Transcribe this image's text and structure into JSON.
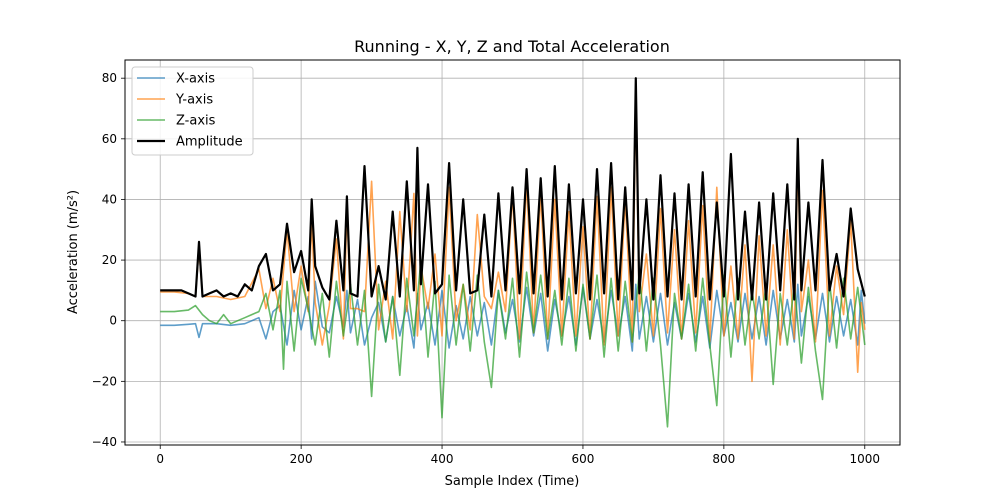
{
  "chart_data": {
    "type": "line",
    "title": "Running - X, Y, Z and Total Acceleration",
    "xlabel": "Sample Index (Time)",
    "ylabel": "Acceleration (m/s²)",
    "xlim": [
      -50,
      1050
    ],
    "ylim": [
      -41,
      86
    ],
    "xticks": [
      0,
      200,
      400,
      600,
      800,
      1000
    ],
    "yticks": [
      -40,
      -20,
      0,
      20,
      40,
      60,
      80
    ],
    "grid": true,
    "legend_position": "upper-left",
    "series": [
      {
        "name": "X-axis",
        "color": "#1f77b4",
        "x": [
          0,
          20,
          40,
          50,
          55,
          60,
          80,
          100,
          120,
          140,
          150,
          160,
          170,
          180,
          190,
          200,
          210,
          215,
          220,
          230,
          240,
          250,
          260,
          265,
          270,
          280,
          290,
          300,
          310,
          320,
          330,
          340,
          350,
          360,
          365,
          370,
          380,
          390,
          400,
          410,
          420,
          430,
          440,
          450,
          460,
          470,
          480,
          490,
          500,
          510,
          520,
          530,
          540,
          550,
          560,
          570,
          580,
          590,
          600,
          610,
          620,
          630,
          640,
          650,
          660,
          670,
          675,
          680,
          690,
          700,
          710,
          720,
          730,
          740,
          750,
          760,
          770,
          780,
          790,
          800,
          810,
          820,
          830,
          840,
          850,
          860,
          870,
          880,
          890,
          900,
          905,
          910,
          920,
          930,
          940,
          950,
          960,
          970,
          980,
          990,
          995,
          1000
        ],
        "y": [
          -1.5,
          -1.5,
          -1.2,
          -1,
          -5.5,
          -1,
          -1,
          -1.5,
          -1,
          1,
          -6,
          3,
          5,
          -8,
          10,
          -3,
          8,
          -6,
          13,
          -2,
          -4,
          8,
          -2,
          10,
          -4,
          7,
          -8,
          1,
          6,
          -7,
          8,
          -5,
          5,
          -9,
          9,
          -3,
          6,
          -8,
          10,
          -9,
          5,
          -6,
          8,
          -5,
          6,
          -8,
          10,
          -4,
          7,
          -7,
          11,
          -5,
          9,
          -10,
          7,
          -5,
          8,
          -8,
          11,
          -6,
          7,
          -7,
          10,
          -5,
          8,
          -10,
          12,
          -6,
          8,
          -7,
          9,
          -8,
          6,
          -6,
          9,
          -7,
          8,
          -9,
          10,
          -5,
          6,
          -7,
          9,
          -6,
          8,
          -8,
          10,
          -6,
          7,
          -7,
          12,
          -5,
          8,
          -6,
          9,
          -7,
          8,
          -5,
          7,
          -8,
          10,
          -1
        ]
      },
      {
        "name": "Y-axis",
        "color": "#ff7f0e",
        "x": [
          0,
          20,
          40,
          50,
          55,
          60,
          80,
          100,
          120,
          140,
          150,
          160,
          170,
          180,
          190,
          200,
          210,
          215,
          220,
          230,
          240,
          250,
          260,
          265,
          270,
          280,
          290,
          300,
          310,
          320,
          330,
          340,
          350,
          360,
          365,
          370,
          380,
          390,
          400,
          410,
          420,
          430,
          440,
          450,
          460,
          470,
          480,
          490,
          500,
          510,
          520,
          530,
          540,
          550,
          560,
          570,
          580,
          590,
          600,
          610,
          620,
          630,
          640,
          650,
          660,
          670,
          675,
          680,
          690,
          700,
          710,
          720,
          730,
          740,
          750,
          760,
          770,
          780,
          790,
          800,
          810,
          820,
          830,
          840,
          850,
          860,
          870,
          880,
          890,
          900,
          905,
          910,
          920,
          930,
          940,
          950,
          960,
          970,
          980,
          990,
          995,
          1000
        ],
        "y": [
          9.5,
          9.5,
          9,
          8,
          24,
          8,
          8,
          7,
          8,
          17,
          4,
          14,
          3,
          30,
          3,
          18,
          3,
          33,
          6,
          -8,
          5,
          27,
          -6,
          37,
          4,
          4,
          3,
          46,
          -3,
          13,
          -6,
          36,
          3,
          42,
          -5,
          18,
          4,
          22,
          -5,
          44,
          0,
          12,
          -3,
          35,
          8,
          4,
          16,
          3,
          42,
          -6,
          46,
          -4,
          42,
          -6,
          40,
          -5,
          36,
          -5,
          31,
          -6,
          41,
          -8,
          44,
          -5,
          40,
          -7,
          74,
          3,
          22,
          -5,
          37,
          -4,
          30,
          -6,
          33,
          -4,
          38,
          -7,
          44,
          -5,
          18,
          -6,
          25,
          -20,
          28,
          -5,
          25,
          -8,
          30,
          -6,
          54,
          3,
          20,
          -7,
          43,
          -5,
          18,
          2,
          33,
          -17,
          6,
          -3
        ]
      },
      {
        "name": "Z-axis",
        "color": "#2ca02c",
        "x": [
          0,
          20,
          40,
          50,
          60,
          70,
          80,
          90,
          100,
          110,
          120,
          130,
          140,
          150,
          160,
          170,
          175,
          180,
          190,
          200,
          210,
          220,
          230,
          240,
          250,
          260,
          270,
          280,
          290,
          300,
          310,
          320,
          330,
          340,
          350,
          360,
          370,
          380,
          390,
          400,
          410,
          420,
          430,
          440,
          450,
          460,
          470,
          480,
          490,
          500,
          510,
          520,
          530,
          540,
          550,
          560,
          570,
          580,
          590,
          600,
          610,
          620,
          630,
          640,
          650,
          660,
          670,
          680,
          690,
          700,
          710,
          720,
          730,
          740,
          750,
          760,
          770,
          780,
          790,
          800,
          810,
          820,
          830,
          840,
          850,
          860,
          870,
          880,
          890,
          900,
          910,
          920,
          930,
          940,
          950,
          960,
          970,
          980,
          990,
          1000
        ],
        "y": [
          3,
          3,
          3.5,
          5,
          2,
          0,
          -1,
          2,
          -1,
          0,
          1,
          2,
          3,
          9,
          -3,
          10,
          -16,
          13,
          -10,
          14,
          4,
          -8,
          9,
          -12,
          13,
          -5,
          12,
          -8,
          10,
          -25,
          12,
          -7,
          8,
          -18,
          14,
          -5,
          20,
          -12,
          13,
          -32,
          15,
          -8,
          12,
          -10,
          15,
          -7,
          -22,
          10,
          -6,
          14,
          -12,
          16,
          -4,
          15,
          -6,
          10,
          -8,
          14,
          -10,
          12,
          -6,
          15,
          -12,
          14,
          -10,
          13,
          -7,
          16,
          -10,
          14,
          -8,
          -35,
          9,
          -6,
          12,
          -10,
          14,
          -8,
          -28,
          15,
          -12,
          14,
          -8,
          10,
          -6,
          12,
          -21,
          9,
          -8,
          12,
          -14,
          11,
          -10,
          -26,
          13,
          -9,
          14,
          -6,
          11,
          -8
        ]
      },
      {
        "name": "Amplitude",
        "color": "#000000",
        "x": [
          0,
          20,
          30,
          40,
          50,
          55,
          60,
          70,
          80,
          90,
          100,
          110,
          120,
          130,
          140,
          150,
          160,
          170,
          180,
          190,
          200,
          210,
          215,
          220,
          230,
          240,
          250,
          260,
          265,
          270,
          280,
          290,
          300,
          310,
          320,
          330,
          340,
          350,
          360,
          365,
          370,
          380,
          390,
          400,
          410,
          420,
          430,
          440,
          450,
          460,
          470,
          480,
          490,
          500,
          510,
          520,
          530,
          540,
          550,
          560,
          570,
          580,
          590,
          600,
          610,
          620,
          630,
          640,
          650,
          660,
          670,
          675,
          680,
          690,
          700,
          710,
          720,
          730,
          740,
          750,
          760,
          770,
          780,
          790,
          800,
          810,
          820,
          830,
          840,
          850,
          860,
          870,
          880,
          890,
          900,
          905,
          910,
          920,
          930,
          940,
          950,
          960,
          970,
          980,
          990,
          1000
        ],
        "y": [
          10,
          10,
          10,
          9,
          8,
          26,
          8,
          9,
          10,
          8,
          9,
          8,
          12,
          10,
          18,
          22,
          10,
          12,
          32,
          16,
          23,
          10,
          40,
          18,
          11,
          7,
          33,
          10,
          41,
          9,
          8,
          51,
          8,
          18,
          7,
          36,
          8,
          46,
          10,
          57,
          12,
          45,
          9,
          12,
          52,
          10,
          40,
          9,
          10,
          35,
          8,
          42,
          10,
          44,
          9,
          50,
          9,
          47,
          8,
          51,
          7,
          45,
          9,
          40,
          7,
          50,
          9,
          52,
          7,
          44,
          7,
          80,
          9,
          40,
          7,
          48,
          8,
          42,
          7,
          45,
          8,
          49,
          7,
          39,
          8,
          55,
          7,
          36,
          7,
          39,
          7,
          42,
          10,
          45,
          7,
          60,
          10,
          39,
          10,
          53,
          10,
          22,
          8,
          37,
          17,
          8
        ]
      }
    ]
  }
}
